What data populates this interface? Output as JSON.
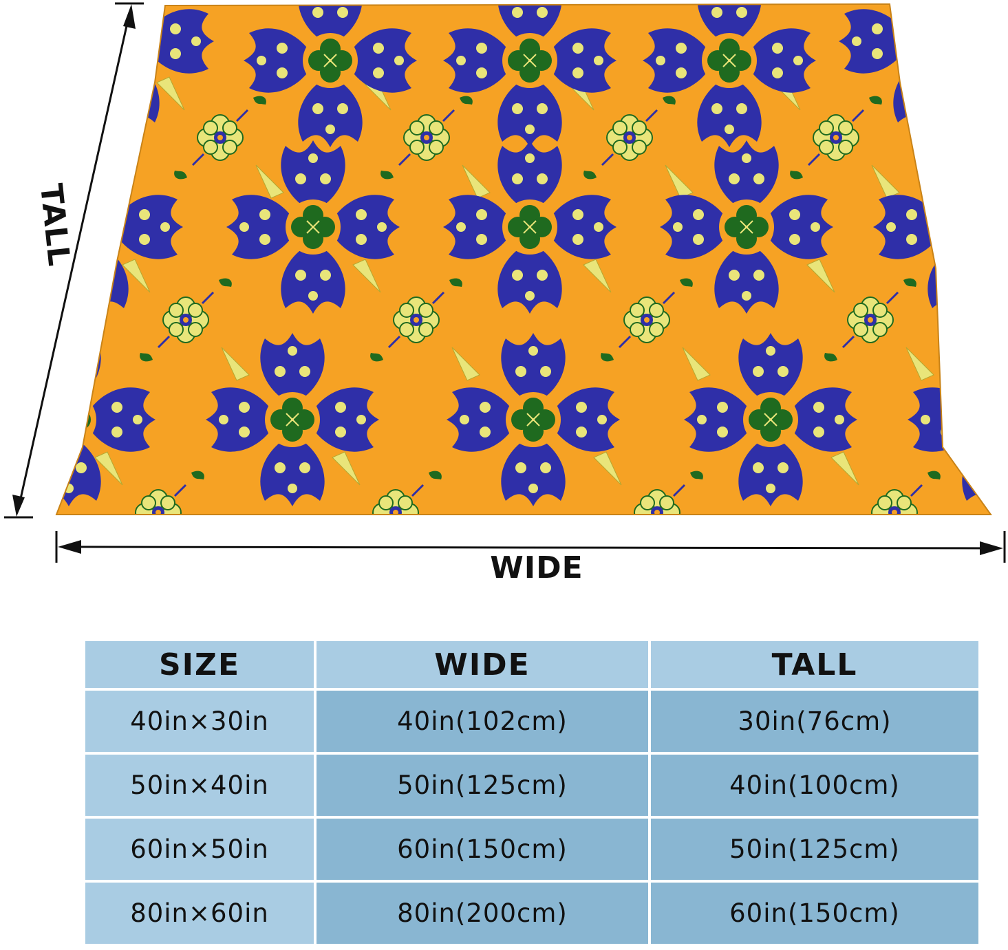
{
  "colors": {
    "blanket_orange": "#f6a224",
    "pattern_blue": "#2f2fa8",
    "pattern_green": "#1f6a1f",
    "pattern_yellow": "#e9e57a",
    "header_fill": "#a9cce3",
    "cell_fill": "#89b6d2"
  },
  "diagram": {
    "tall_label": "TALL",
    "wide_label": "WIDE"
  },
  "table": {
    "headers": [
      "SIZE",
      "WIDE",
      "TALL"
    ],
    "rows": [
      [
        "40in×30in",
        "40in(102cm)",
        "30in(76cm)"
      ],
      [
        "50in×40in",
        "50in(125cm)",
        "40in(100cm)"
      ],
      [
        "60in×50in",
        "60in(150cm)",
        "50in(125cm)"
      ],
      [
        "80in×60in",
        "80in(200cm)",
        "60in(150cm)"
      ]
    ]
  }
}
